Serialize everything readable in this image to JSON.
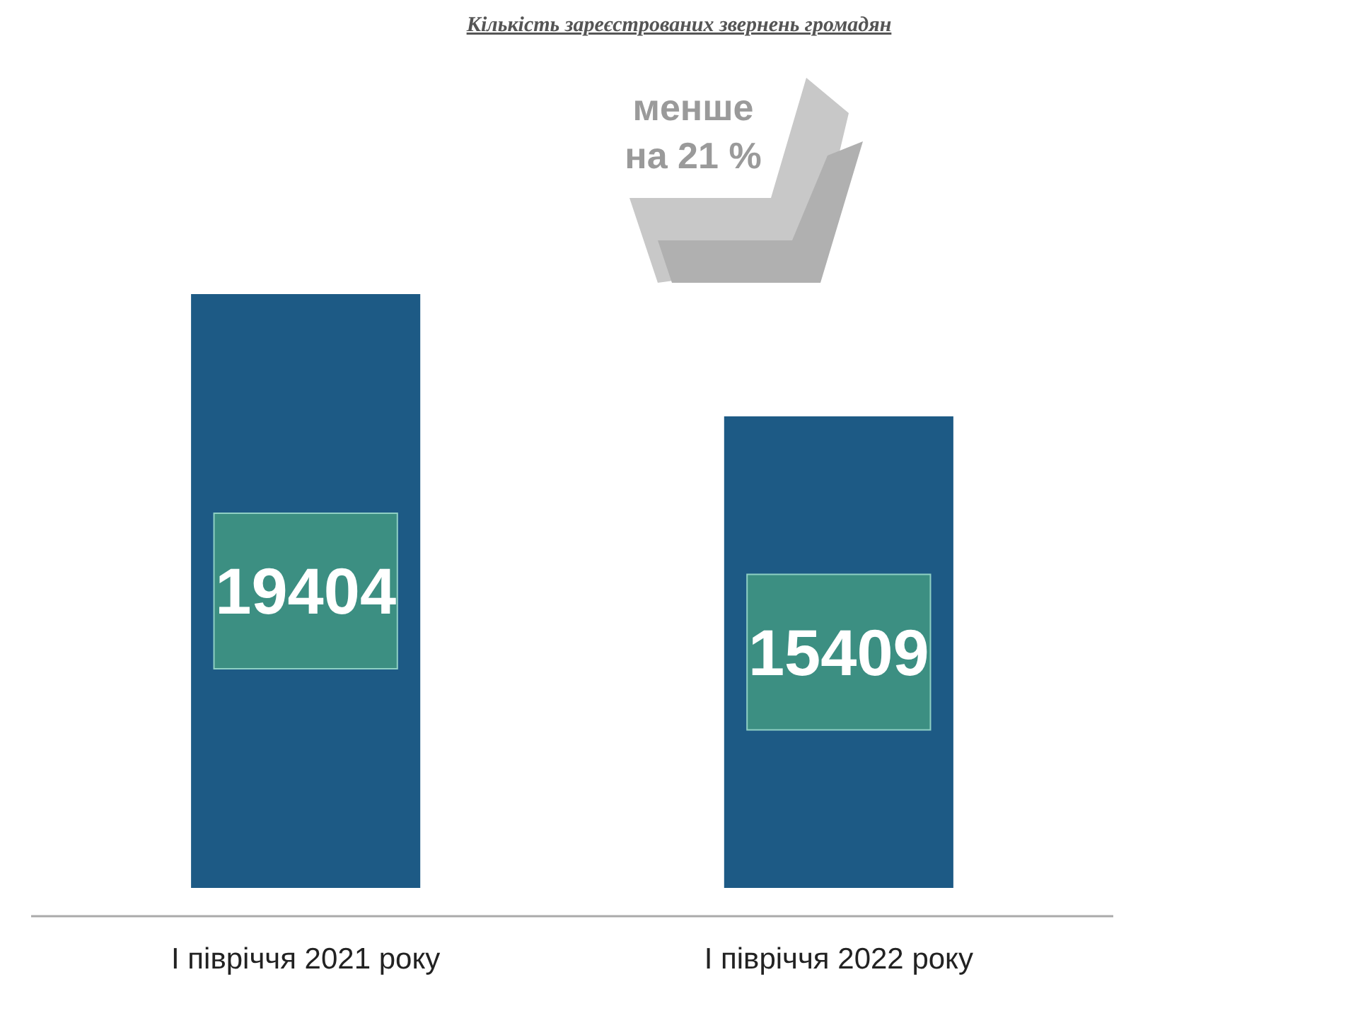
{
  "chart_data": {
    "type": "bar",
    "title": "Кількість зареєстрованих звернень громадян",
    "categories": [
      "І півріччя 2021 року",
      "І півріччя 2022 року"
    ],
    "values": [
      19404,
      15409
    ],
    "color": "#1d5a85",
    "data_labels": true,
    "annotations": [
      "менше на 21 %"
    ]
  }
}
